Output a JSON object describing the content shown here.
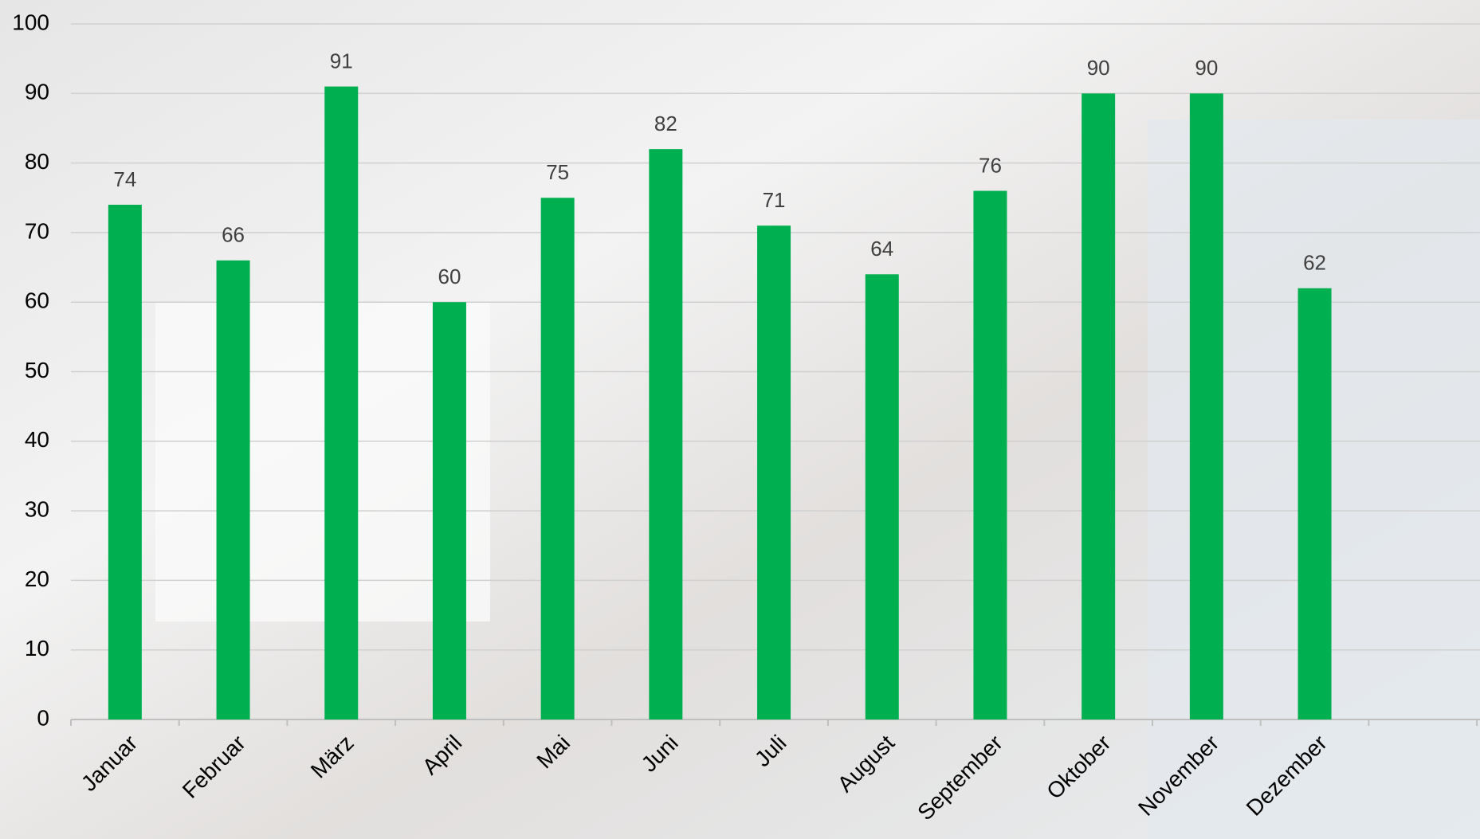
{
  "chart_data": {
    "type": "bar",
    "categories": [
      "Januar",
      "Februar",
      "März",
      "April",
      "Mai",
      "Juni",
      "Juli",
      "August",
      "September",
      "Oktober",
      "November",
      "Dezember"
    ],
    "values": [
      74,
      66,
      91,
      60,
      75,
      82,
      71,
      64,
      76,
      90,
      90,
      62
    ],
    "color": "#00b050",
    "ylim": [
      0,
      100
    ],
    "yticks": [
      0,
      10,
      20,
      30,
      40,
      50,
      60,
      70,
      80,
      90,
      100
    ],
    "grid": true
  }
}
